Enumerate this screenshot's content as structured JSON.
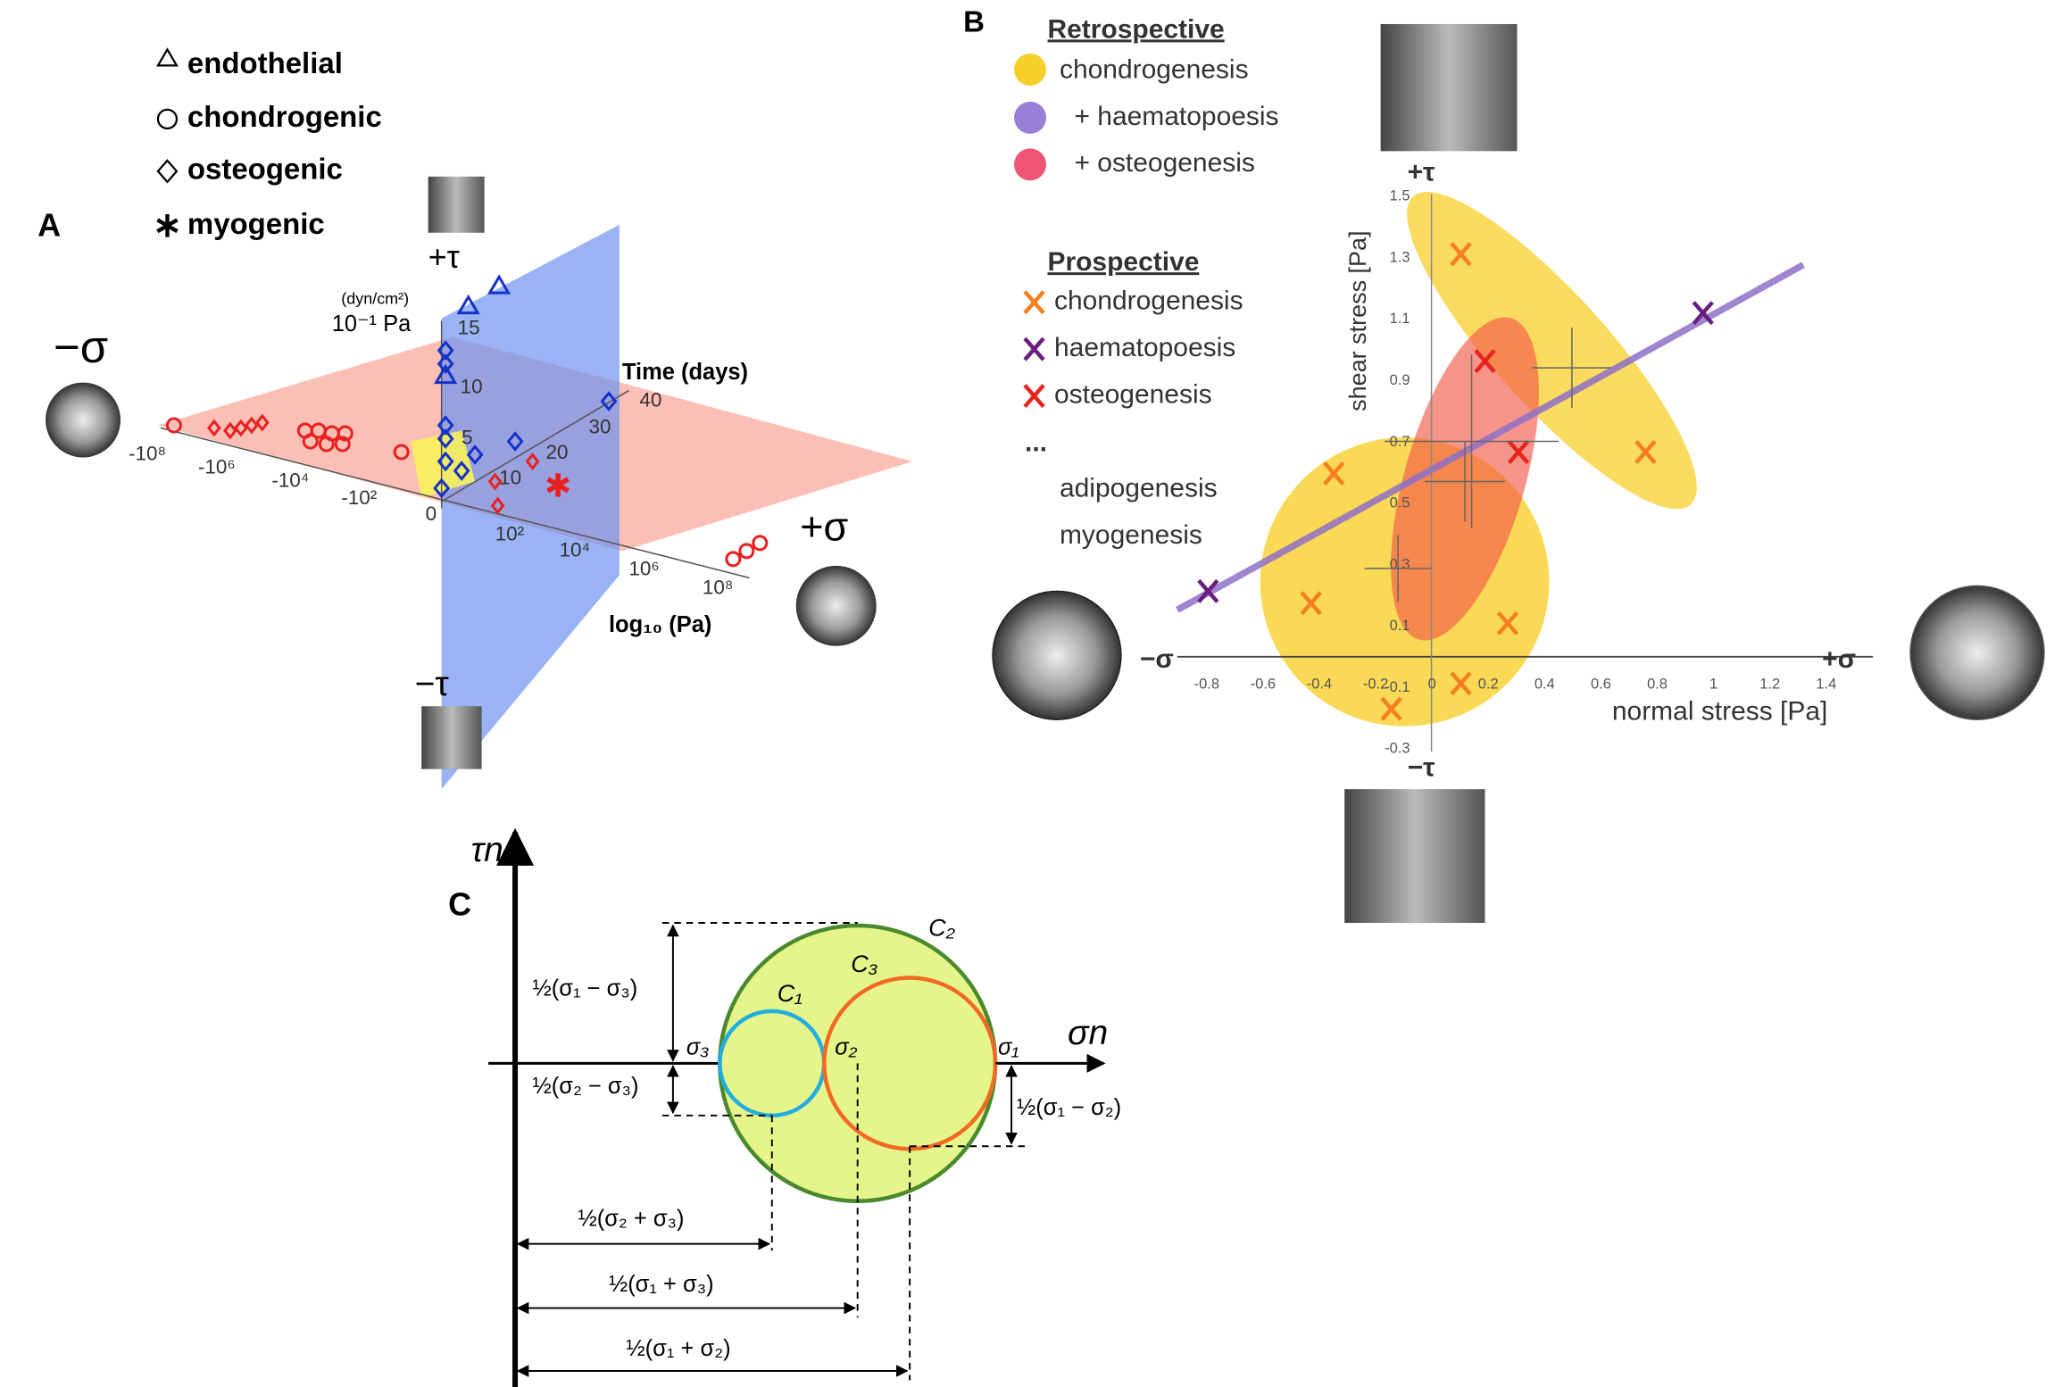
{
  "panel_a": {
    "label": "A",
    "legend": [
      "endothelial",
      "chondrogenic",
      "osteogenic",
      "myogenic"
    ],
    "plus_tau": "+τ",
    "minus_tau": "−τ",
    "minus_sigma": "−σ",
    "plus_sigma": "+σ",
    "unit_small": "(dyn/cm²)",
    "unit_pa": "10⁻¹ Pa",
    "time_label": "Time (days)",
    "log_label": "log₁₀ (Pa)",
    "pa_ticks": [
      "-10⁸",
      "-10⁶",
      "-10⁴",
      "-10²",
      "0",
      "10²",
      "10⁴",
      "10⁶",
      "10⁸"
    ],
    "tau_ticks": [
      "15",
      "10",
      "5"
    ],
    "time_ticks": [
      "10",
      "20",
      "30",
      "40"
    ]
  },
  "panel_b": {
    "label": "B",
    "retrospective_title": "Retrospective",
    "retrospective": [
      "chondrogenesis",
      "+ haematopoesis",
      "+ osteogenesis"
    ],
    "prospective_title": "Prospective",
    "prospective": [
      "chondrogenesis",
      "haematopoesis",
      "osteogenesis"
    ],
    "ellipsis": "...",
    "others": [
      "adipogenesis",
      "myogenesis"
    ],
    "plus_tau": "+τ",
    "minus_tau": "−τ",
    "minus_sigma": "−σ",
    "plus_sigma": "+σ",
    "x_title": "normal stress [Pa]",
    "y_title": "shear stress [Pa]",
    "xticks": [
      "-0.8",
      "-0.6",
      "-0.4",
      "-0.2",
      "0",
      "0.2",
      "0.4",
      "0.6",
      "0.8",
      "1",
      "1.2",
      "1.4"
    ],
    "yticks": [
      "1.5",
      "1.3",
      "1.1",
      "0.9",
      "0.7",
      "0.5",
      "0.3",
      "0.1",
      "-0.1",
      "-0.3"
    ]
  },
  "panel_c": {
    "label": "C",
    "y_axis": "τn",
    "x_axis": "σn",
    "circles": [
      "C₁",
      "C₂",
      "C₃"
    ],
    "points": [
      "σ₃",
      "σ₂",
      "σ₁"
    ],
    "dims": [
      "½(σ₁ − σ₃)",
      "½(σ₂ − σ₃)",
      "½(σ₁ − σ₂)",
      "½(σ₂ + σ₃)",
      "½(σ₁ + σ₃)",
      "½(σ₁ + σ₂)"
    ]
  }
}
